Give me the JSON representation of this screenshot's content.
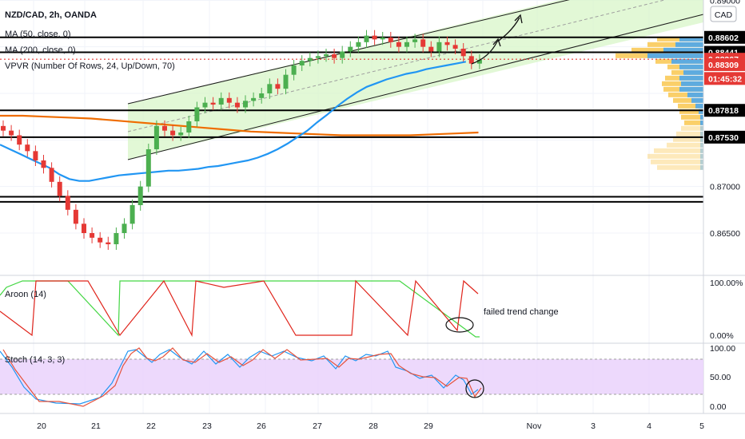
{
  "header": {
    "symbol": "NZD/CAD, 2h, OANDA",
    "ma50": "MA (50, close, 0)",
    "ma200": "MA (200, close, 0)",
    "vpvr": "VPVR (Number Of Rows, 24, Up/Down, 70)"
  },
  "currency_label": "CAD",
  "aroon_label": "Aroon (14)",
  "stoch_label": "Stoch (14, 3, 3)",
  "annotation_text": "failed trend change",
  "countdown": "01:45:32",
  "colors": {
    "up": "#4caf50",
    "down": "#e53935",
    "ma50": "#2196f3",
    "ma200": "#ef6c00",
    "aroon_up": "#43d643",
    "aroon_down": "#e0241b",
    "channel_fill": "#d8f5c8",
    "stoch_band": "#ead2fb"
  },
  "chart_data": [
    {
      "type": "candlestick",
      "title": "NZD/CAD, 2h, OANDA",
      "x_ticks": [
        "20",
        "21",
        "22",
        "23",
        "26",
        "27",
        "28",
        "29",
        "Nov",
        "3",
        "4",
        "5"
      ],
      "y_ticks": [
        "0.89000",
        "0.87000",
        "0.86500"
      ],
      "ylim": [
        0.862,
        0.8905
      ],
      "price_tags": [
        {
          "label": "0.88602",
          "value": 0.88602,
          "kind": "line"
        },
        {
          "label": "0.88441",
          "value": 0.88441,
          "kind": "line"
        },
        {
          "label": "0.88367",
          "value": 0.88367,
          "kind": "price"
        },
        {
          "label": "0.88309",
          "value": 0.88309,
          "kind": "price"
        },
        {
          "label": "0.87818",
          "value": 0.87818,
          "kind": "line"
        },
        {
          "label": "0.87530",
          "value": 0.8753,
          "kind": "line"
        }
      ],
      "horizontal_levels": [
        0.88602,
        0.88441,
        0.87818,
        0.8753,
        0.8689,
        0.86835
      ],
      "close": [
        0.876,
        0.8755,
        0.8745,
        0.8738,
        0.8728,
        0.872,
        0.8705,
        0.869,
        0.8675,
        0.866,
        0.865,
        0.8645,
        0.864,
        0.8638,
        0.865,
        0.866,
        0.868,
        0.87,
        0.874,
        0.8765,
        0.876,
        0.8755,
        0.8758,
        0.877,
        0.8785,
        0.879,
        0.8788,
        0.8795,
        0.879,
        0.8785,
        0.8792,
        0.8795,
        0.88,
        0.881,
        0.8805,
        0.882,
        0.883,
        0.8835,
        0.8838,
        0.884,
        0.8842,
        0.8838,
        0.8845,
        0.885,
        0.8855,
        0.8862,
        0.8858,
        0.886,
        0.8855,
        0.885,
        0.8855,
        0.8858,
        0.885,
        0.8845,
        0.8855,
        0.8852,
        0.8848,
        0.884,
        0.8832,
        0.8836
      ],
      "ma50": [
        0.8745,
        0.874,
        0.8735,
        0.873,
        0.8725,
        0.872,
        0.8713,
        0.8708,
        0.8706,
        0.8706,
        0.8708,
        0.871,
        0.8712,
        0.8713,
        0.8714,
        0.8715,
        0.8716,
        0.8717,
        0.8717,
        0.8718,
        0.8719,
        0.8721,
        0.8722,
        0.8724,
        0.8726,
        0.8728,
        0.8731,
        0.8735,
        0.874,
        0.8746,
        0.8753,
        0.876,
        0.8769,
        0.8777,
        0.8786,
        0.8794,
        0.8801,
        0.8807,
        0.8811,
        0.8815,
        0.8818,
        0.8821,
        0.8823,
        0.8826,
        0.8828,
        0.883,
        0.8832,
        0.8834
      ],
      "ma200": [
        0.8776,
        0.8776,
        0.8775,
        0.8774,
        0.8773,
        0.8771,
        0.8769,
        0.8767,
        0.8765,
        0.8763,
        0.8761,
        0.8759,
        0.8758,
        0.8757,
        0.8756,
        0.8755,
        0.8755,
        0.8755,
        0.8755,
        0.8756,
        0.8757,
        0.8758
      ]
    },
    {
      "type": "line",
      "title": "Aroon (14)",
      "y_ticks": [
        "100.00%",
        "0.00%"
      ],
      "ylim": [
        0,
        100
      ]
    },
    {
      "type": "line",
      "title": "Stoch (14, 3, 3)",
      "y_ticks": [
        "100.00",
        "50.00",
        "0.00"
      ],
      "ylim": [
        0,
        100
      ],
      "bands": [
        80,
        20
      ]
    }
  ]
}
